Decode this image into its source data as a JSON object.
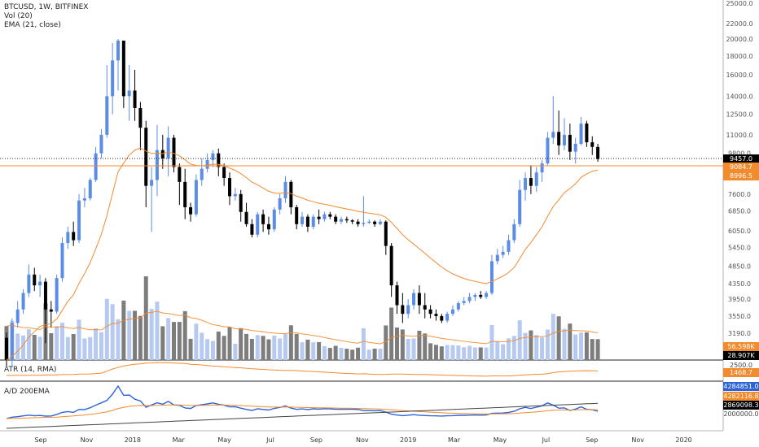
{
  "chart_data": {
    "type": "candlestick",
    "symbol": "BTCUSD, 1W, BITFINEX",
    "volume_indicator": "Vol (20)",
    "ema_indicator": "EMA (21, close)",
    "atr_title": "ATR (14, RMA)",
    "ad_title": "A/D 200EMA",
    "price_axis_ticks": [
      "25000.0",
      "22000.0",
      "20000.0",
      "18000.0",
      "16000.0",
      "14000.0",
      "12500.0",
      "11000.0",
      "9800.0",
      "8700.0",
      "7600.0",
      "6850.0",
      "6050.0",
      "5450.0",
      "4850.0",
      "4350.0",
      "3950.0",
      "3550.0",
      "3190.0"
    ],
    "time_axis": [
      "Sep",
      "Nov",
      "2018",
      "Mar",
      "May",
      "Jul",
      "Sep",
      "Nov",
      "2019",
      "Mar",
      "May",
      "Jul",
      "Sep",
      "Nov",
      "2020"
    ],
    "markers": {
      "price": "9457.0",
      "ema_a": "9084.7",
      "ema_b": "8996.5",
      "vol_ma": "56.598K",
      "vol": "28.907K",
      "atr_tick": "2500.0",
      "atr": "1468.7",
      "ad_a": "4284851.0",
      "ad_b": "4282116.8",
      "ad_c": "2869098.3",
      "ad_tick": "2000000.0"
    },
    "candles": [
      [
        3100,
        2700,
        3200,
        2600
      ],
      [
        2700,
        3400,
        3500,
        2600
      ],
      [
        3400,
        3700,
        3900,
        3300
      ],
      [
        3700,
        4100,
        4200,
        3600
      ],
      [
        4100,
        4600,
        4900,
        4000
      ],
      [
        4600,
        4300,
        4800,
        4150
      ],
      [
        4300,
        4400,
        4600,
        4000
      ],
      [
        4400,
        3700,
        4500,
        3000
      ],
      [
        3700,
        3650,
        3900,
        3300
      ],
      [
        3650,
        4500,
        4600,
        3600
      ],
      [
        4500,
        5600,
        5800,
        4400
      ],
      [
        5600,
        6000,
        6200,
        5400
      ],
      [
        6000,
        5700,
        6400,
        5500
      ],
      [
        5700,
        7300,
        7600,
        5600
      ],
      [
        7300,
        7400,
        7900,
        7000
      ],
      [
        7400,
        8300,
        8400,
        7300
      ],
      [
        8300,
        9800,
        10200,
        8200
      ],
      [
        9800,
        11000,
        11400,
        9500
      ],
      [
        11000,
        14000,
        17000,
        10800
      ],
      [
        14000,
        17500,
        19500,
        12500
      ],
      [
        17500,
        19800,
        20000,
        14500
      ],
      [
        19800,
        14000,
        19000,
        13000
      ],
      [
        14000,
        14500,
        17000,
        12000
      ],
      [
        14500,
        13000,
        16500,
        12000
      ],
      [
        13000,
        11500,
        13500,
        10000
      ],
      [
        11500,
        8000,
        12000,
        7000
      ],
      [
        8000,
        8300,
        9000,
        6000
      ],
      [
        8300,
        10000,
        11700,
        7500
      ],
      [
        10000,
        9500,
        11000,
        8900
      ],
      [
        9500,
        10800,
        11600,
        8500
      ],
      [
        10800,
        9000,
        11000,
        8700
      ],
      [
        9000,
        8200,
        9200,
        7100
      ],
      [
        8200,
        7000,
        8900,
        6500
      ],
      [
        7000,
        6700,
        7200,
        6400
      ],
      [
        6700,
        8300,
        8600,
        6600
      ],
      [
        8300,
        8900,
        9500,
        8000
      ],
      [
        8900,
        9400,
        9800,
        8700
      ],
      [
        9400,
        9800,
        10000,
        9000
      ],
      [
        9800,
        9000,
        10100,
        8500
      ],
      [
        9000,
        8400,
        9200,
        8000
      ],
      [
        8400,
        7500,
        8700,
        7100
      ],
      [
        7500,
        7600,
        7900,
        7300
      ],
      [
        7600,
        6800,
        7800,
        6400
      ],
      [
        6800,
        6300,
        7200,
        6200
      ],
      [
        6300,
        5900,
        6500,
        5800
      ],
      [
        5900,
        6700,
        6800,
        5800
      ],
      [
        6700,
        6300,
        6900,
        6000
      ],
      [
        6300,
        6100,
        6600,
        5900
      ],
      [
        6100,
        6900,
        7000,
        6000
      ],
      [
        6900,
        7400,
        7600,
        6700
      ],
      [
        7400,
        8200,
        8500,
        7200
      ],
      [
        8200,
        7000,
        8300,
        6700
      ],
      [
        7000,
        6300,
        7100,
        6100
      ],
      [
        6300,
        6600,
        6800,
        6200
      ],
      [
        6600,
        6200,
        6700,
        6000
      ],
      [
        6200,
        6600,
        6700,
        6100
      ],
      [
        6600,
        6500,
        6900,
        6300
      ],
      [
        6500,
        6700,
        6800,
        6400
      ],
      [
        6700,
        6600,
        6800,
        6500
      ],
      [
        6600,
        6400,
        6700,
        6300
      ],
      [
        6400,
        6500,
        6600,
        6300
      ],
      [
        6500,
        6450,
        6600,
        6350
      ],
      [
        6450,
        6400,
        6500,
        6300
      ],
      [
        6400,
        6300,
        6500,
        6200
      ],
      [
        6300,
        6350,
        7500,
        6200
      ],
      [
        6350,
        6400,
        6500,
        6300
      ],
      [
        6400,
        6300,
        6450,
        6200
      ],
      [
        6300,
        6400,
        6500,
        6250
      ],
      [
        6400,
        5500,
        6450,
        5200
      ],
      [
        5500,
        4300,
        5600,
        4000
      ],
      [
        4300,
        3800,
        4400,
        3600
      ],
      [
        3800,
        3600,
        4100,
        3400
      ],
      [
        3600,
        3800,
        3950,
        3500
      ],
      [
        3800,
        4100,
        4200,
        3700
      ],
      [
        4100,
        3800,
        4300,
        3600
      ],
      [
        3800,
        3700,
        4100,
        3500
      ],
      [
        3700,
        3600,
        3800,
        3500
      ],
      [
        3600,
        3550,
        3700,
        3450
      ],
      [
        3550,
        3450,
        3600,
        3400
      ],
      [
        3450,
        3600,
        3650,
        3400
      ],
      [
        3600,
        3700,
        3800,
        3550
      ],
      [
        3700,
        3850,
        3900,
        3650
      ],
      [
        3850,
        3900,
        4000,
        3800
      ],
      [
        3900,
        4000,
        4100,
        3850
      ],
      [
        4000,
        4050,
        4100,
        3900
      ],
      [
        4050,
        4000,
        4150,
        3950
      ],
      [
        4000,
        4100,
        4150,
        3950
      ],
      [
        4100,
        5000,
        5200,
        4050
      ],
      [
        5000,
        5200,
        5400,
        4900
      ],
      [
        5200,
        5300,
        5500,
        5100
      ],
      [
        5300,
        5700,
        5900,
        5200
      ],
      [
        5700,
        6300,
        6500,
        5600
      ],
      [
        6300,
        7800,
        8300,
        6200
      ],
      [
        7800,
        8400,
        8700,
        7300
      ],
      [
        8400,
        8000,
        9100,
        7600
      ],
      [
        8000,
        8700,
        9000,
        7700
      ],
      [
        8700,
        9200,
        9400,
        8200
      ],
      [
        9200,
        10800,
        11200,
        9100
      ],
      [
        10800,
        11200,
        14000,
        10400
      ],
      [
        11200,
        10300,
        12800,
        9700
      ],
      [
        10300,
        11000,
        12200,
        10000
      ],
      [
        11000,
        9900,
        11800,
        9400
      ],
      [
        9900,
        10400,
        10800,
        9200
      ],
      [
        10400,
        11800,
        12300,
        10300
      ],
      [
        11800,
        10500,
        12000,
        10200
      ],
      [
        10500,
        10200,
        10900,
        9700
      ],
      [
        10200,
        9457,
        10400,
        9300
      ]
    ],
    "x0_date": "2017-08-14",
    "candle_spacing_weeks": 1
  }
}
